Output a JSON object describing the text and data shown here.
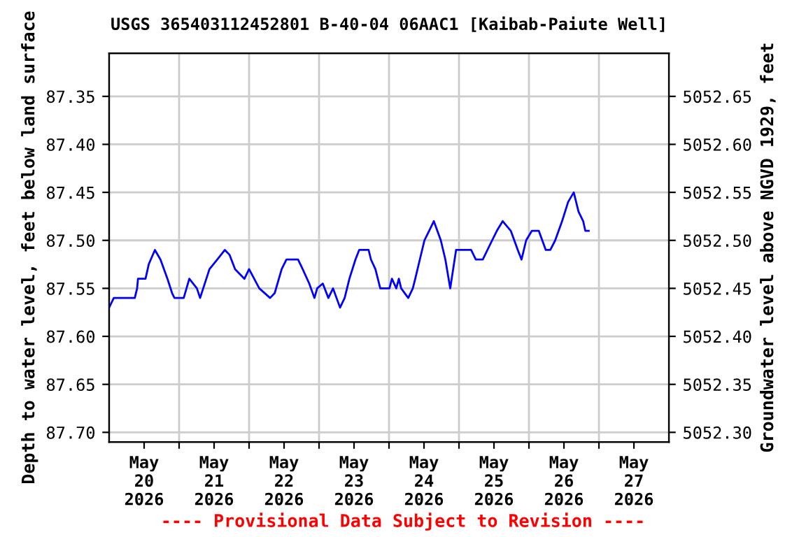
{
  "chart_data": {
    "type": "line",
    "title": "USGS 365403112452801 B-40-04 06AAC1 [Kaibab-Paiute Well]",
    "ylabel": "Depth to water level, feet below land surface",
    "y2label": "Groundwater level above NGVD 1929, feet",
    "annotations": [
      "---- Provisional Data Subject to Revision ----"
    ],
    "x": [
      "2026-05-19T12:00",
      "2026-05-19T13:36",
      "2026-05-19T20:48",
      "2026-05-19T21:36",
      "2026-05-19T21:54",
      "2026-05-20T00:29",
      "2026-05-20T01:35",
      "2026-05-20T03:42",
      "2026-05-20T05:37",
      "2026-05-20T08:00",
      "2026-05-20T09:36",
      "2026-05-20T10:25",
      "2026-05-20T13:35",
      "2026-05-20T15:30",
      "2026-05-20T18:06",
      "2026-05-20T19:12",
      "2026-05-20T22:25",
      "2026-05-21T01:06",
      "2026-05-21T03:42",
      "2026-05-21T05:17",
      "2026-05-21T07:12",
      "2026-05-21T10:25",
      "2026-05-21T12:00",
      "2026-05-21T15:30",
      "2026-05-21T19:12",
      "2026-05-21T20:47",
      "2026-05-21T23:11",
      "2026-05-22T00:49",
      "2026-05-22T04:48",
      "2026-05-22T06:23",
      "2026-05-22T08:38",
      "2026-05-22T10:25",
      "2026-05-22T11:22",
      "2026-05-22T13:17",
      "2026-05-22T15:12",
      "2026-05-22T16:48",
      "2026-05-22T19:12",
      "2026-05-22T20:47",
      "2026-05-22T22:25",
      "2026-05-23T00:29",
      "2026-05-23T01:46",
      "2026-05-23T05:00",
      "2026-05-23T05:49",
      "2026-05-23T07:20",
      "2026-05-23T09:00",
      "2026-05-23T12:09",
      "2026-05-23T13:00",
      "2026-05-23T14:30",
      "2026-05-23T15:22",
      "2026-05-23T16:10",
      "2026-05-23T18:36",
      "2026-05-23T20:10",
      "2026-05-23T21:00",
      "2026-05-23T22:34",
      "2026-05-24T00:09",
      "2026-05-24T01:46",
      "2026-05-24T03:22",
      "2026-05-24T05:46",
      "2026-05-24T07:20",
      "2026-05-24T09:00",
      "2026-05-24T11:00",
      "2026-05-24T16:10",
      "2026-05-24T17:46",
      "2026-05-24T20:10",
      "2026-05-24T23:22",
      "2026-05-25T01:00",
      "2026-05-25T03:00",
      "2026-05-25T05:46",
      "2026-05-25T08:10",
      "2026-05-25T09:27",
      "2026-05-25T11:02",
      "2026-05-25T13:00",
      "2026-05-25T15:22",
      "2026-05-25T17:46",
      "2026-05-25T19:20",
      "2026-05-25T21:00",
      "2026-05-25T23:22",
      "2026-05-26T01:26",
      "2026-05-26T03:22",
      "2026-05-26T05:00",
      "2026-05-26T06:36",
      "2026-05-26T07:20",
      "2026-05-26T08:30"
    ],
    "series": [
      {
        "color": "#0000ff",
        "values": [
          87.57,
          87.56,
          87.56,
          87.55,
          87.54,
          87.54,
          87.525,
          87.51,
          87.52,
          87.54,
          87.555,
          87.56,
          87.56,
          87.54,
          87.55,
          87.56,
          87.53,
          87.52,
          87.51,
          87.515,
          87.53,
          87.54,
          87.53,
          87.55,
          87.56,
          87.555,
          87.53,
          87.52,
          87.52,
          87.53,
          87.545,
          87.56,
          87.55,
          87.545,
          87.56,
          87.55,
          87.57,
          87.56,
          87.54,
          87.52,
          87.51,
          87.51,
          87.52,
          87.53,
          87.55,
          87.55,
          87.54,
          87.55,
          87.54,
          87.55,
          87.56,
          87.55,
          87.54,
          87.52,
          87.5,
          87.49,
          87.48,
          87.5,
          87.52,
          87.55,
          87.51,
          87.51,
          87.52,
          87.52,
          87.5,
          87.49,
          87.48,
          87.49,
          87.51,
          87.52,
          87.5,
          87.49,
          87.49,
          87.51,
          87.51,
          87.5,
          87.48,
          87.46,
          87.45,
          87.47,
          87.48,
          87.49,
          87.49
        ]
      }
    ],
    "xlim": [
      "2026-05-19T12:00",
      "2026-05-27T12:00"
    ],
    "xticks": [
      {
        "value": "2026-05-20",
        "label": "May\n20\n2026"
      },
      {
        "value": "2026-05-20T12:00",
        "label": null
      },
      {
        "value": "2026-05-21",
        "label": "May\n21\n2026"
      },
      {
        "value": "2026-05-21T12:00",
        "label": null
      },
      {
        "value": "2026-05-22",
        "label": "May\n22\n2026"
      },
      {
        "value": "2026-05-22T12:00",
        "label": null
      },
      {
        "value": "2026-05-23",
        "label": "May\n23\n2026"
      },
      {
        "value": "2026-05-23T12:00",
        "label": null
      },
      {
        "value": "2026-05-24",
        "label": "May\n24\n2026"
      },
      {
        "value": "2026-05-24T12:00",
        "label": null
      },
      {
        "value": "2026-05-25",
        "label": "May\n25\n2026"
      },
      {
        "value": "2026-05-25T12:00",
        "label": null
      },
      {
        "value": "2026-05-26",
        "label": "May\n26\n2026"
      },
      {
        "value": "2026-05-26T12:00",
        "label": null
      },
      {
        "value": "2026-05-27",
        "label": "May\n27\n2026"
      }
    ],
    "ylim": [
      87.71,
      87.305
    ],
    "yticks": [
      {
        "value": 87.35,
        "label": "87.35"
      },
      {
        "value": 87.4,
        "label": "87.40"
      },
      {
        "value": 87.45,
        "label": "87.45"
      },
      {
        "value": 87.5,
        "label": "87.50"
      },
      {
        "value": 87.55,
        "label": "87.55"
      },
      {
        "value": 87.6,
        "label": "87.60"
      },
      {
        "value": 87.65,
        "label": "87.65"
      },
      {
        "value": 87.7,
        "label": "87.70"
      }
    ],
    "y2lim": [
      5052.29,
      5052.695
    ],
    "y2ticks": [
      {
        "value": 5052.65,
        "label": "5052.65"
      },
      {
        "value": 5052.6,
        "label": "5052.60"
      },
      {
        "value": 5052.55,
        "label": "5052.55"
      },
      {
        "value": 5052.5,
        "label": "5052.50"
      },
      {
        "value": 5052.45,
        "label": "5052.45"
      },
      {
        "value": 5052.4,
        "label": "5052.40"
      },
      {
        "value": 5052.35,
        "label": "5052.35"
      },
      {
        "value": 5052.3,
        "label": "5052.30"
      }
    ],
    "grid": true,
    "legend": false,
    "marker": "none",
    "line_style": "solid"
  }
}
